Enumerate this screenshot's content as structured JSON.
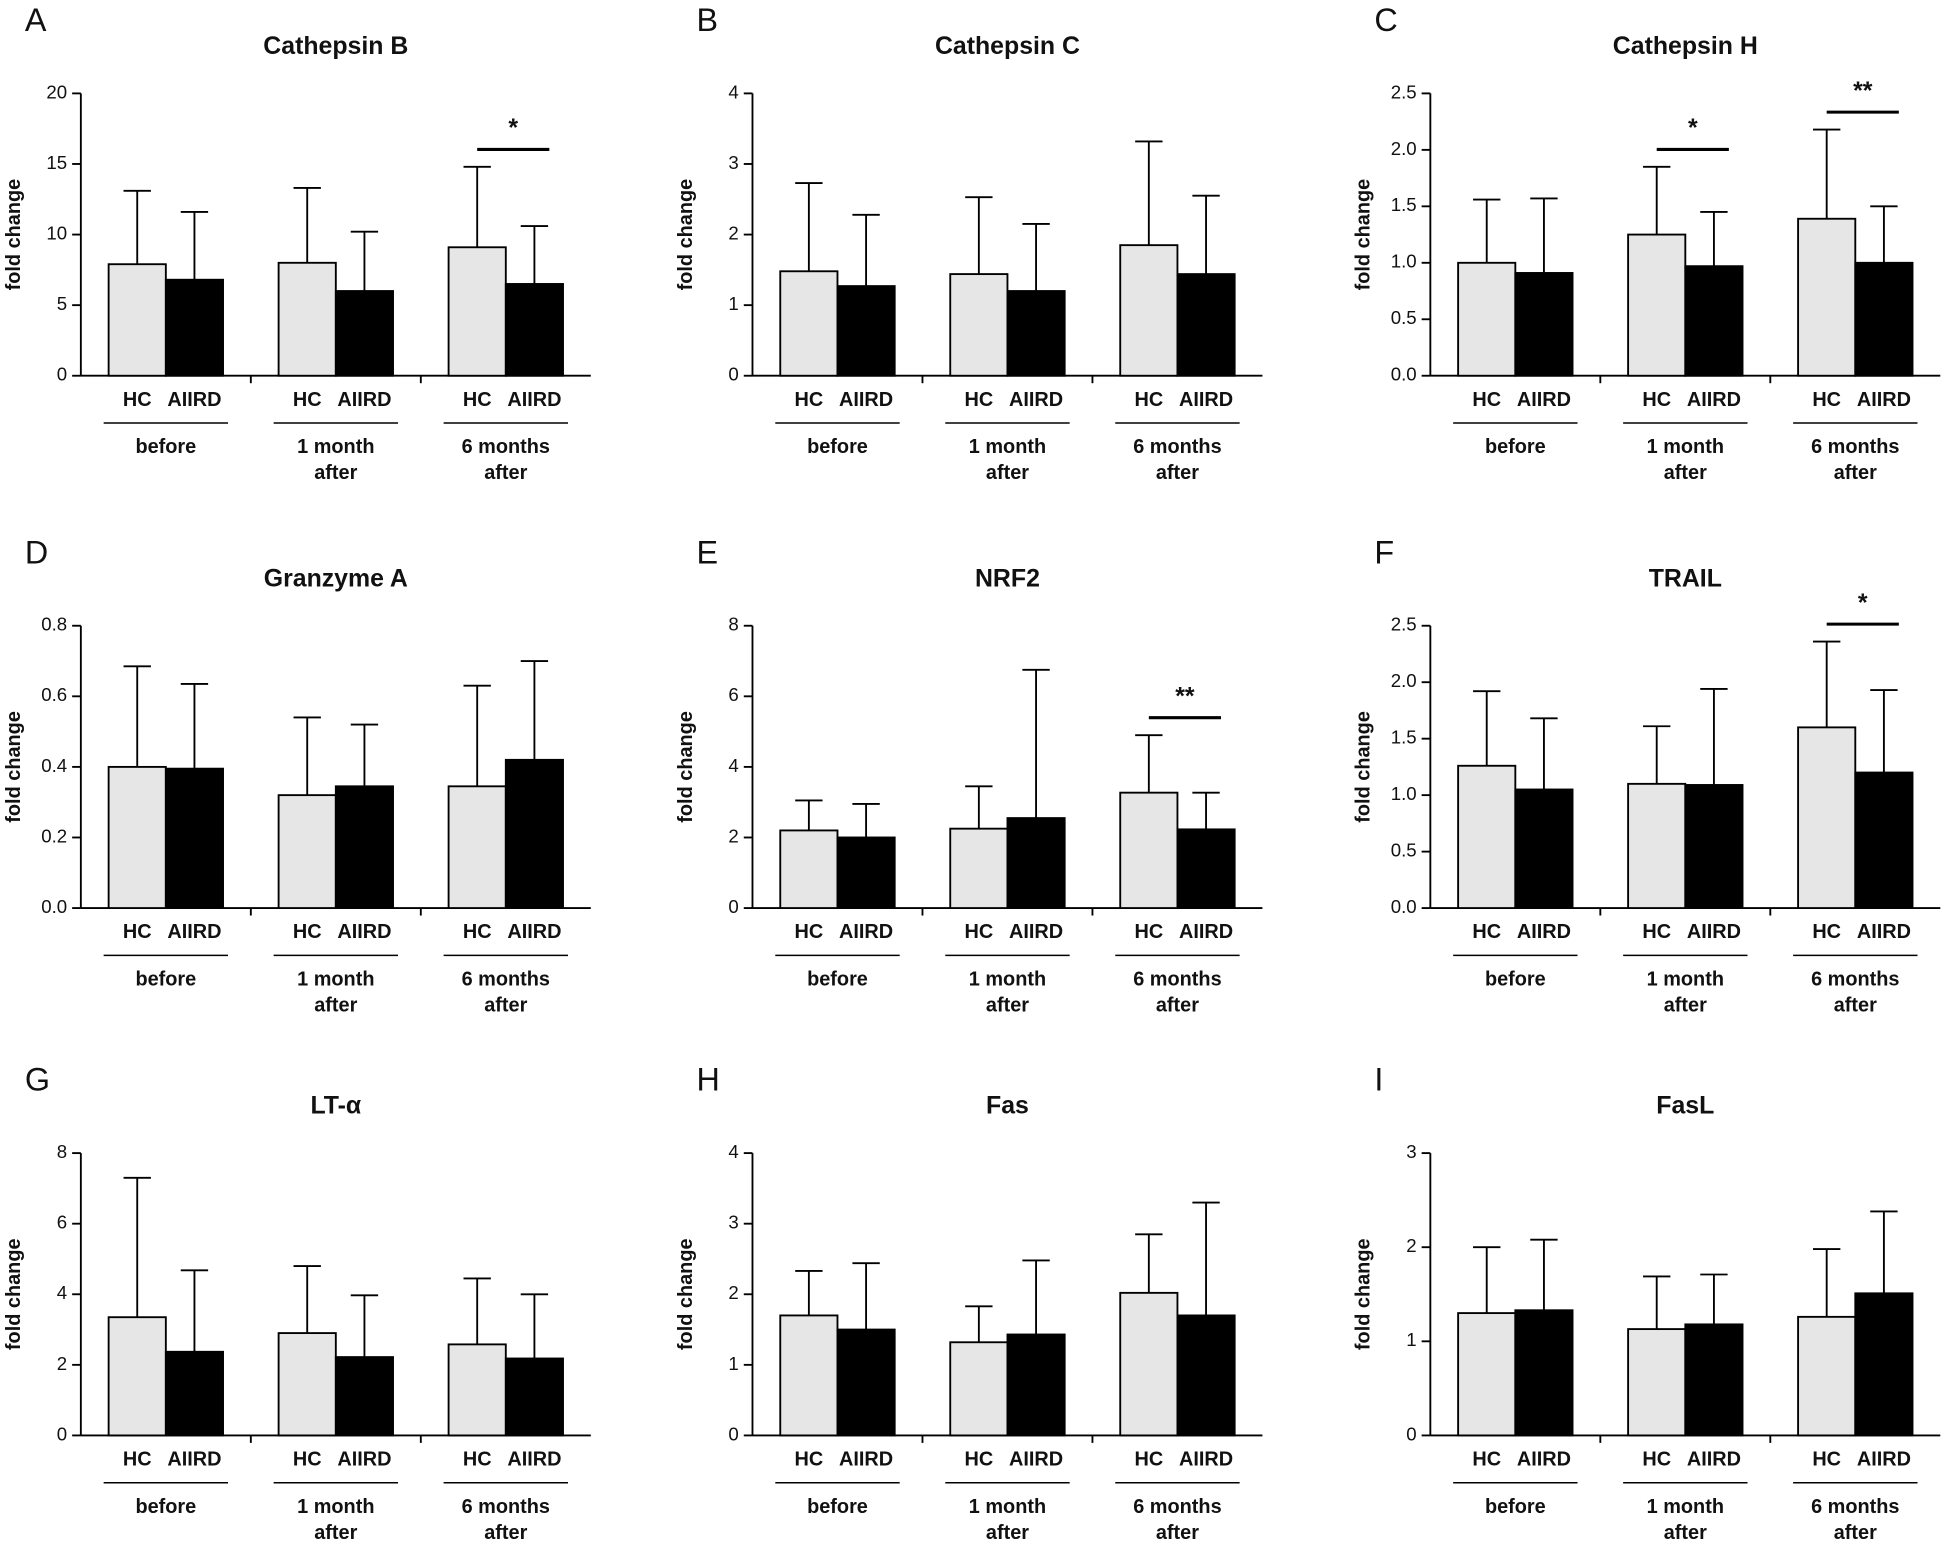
{
  "chart_data": [
    {
      "type": "bar",
      "panel": "A",
      "title": "Cathepsin B",
      "ylabel": "fold change",
      "groups": [
        [
          "before"
        ],
        [
          "1 month",
          "after"
        ],
        [
          "6 months",
          "after"
        ]
      ],
      "series": [
        {
          "name": "HC",
          "color": "#e6e6e6",
          "values": [
            7.9,
            8.0,
            9.1
          ],
          "errors": [
            5.2,
            5.3,
            5.7
          ]
        },
        {
          "name": "AIIRD",
          "color": "#000000",
          "values": [
            6.8,
            6.0,
            6.5
          ],
          "errors": [
            4.8,
            4.2,
            4.1
          ]
        }
      ],
      "ylim": [
        0,
        20
      ],
      "yticks": [
        0,
        5,
        10,
        15,
        20
      ],
      "annotations": [
        {
          "group": 2,
          "label": "*"
        }
      ]
    },
    {
      "type": "bar",
      "panel": "B",
      "title": "Cathepsin C",
      "ylabel": "fold change",
      "groups": [
        [
          "before"
        ],
        [
          "1 month",
          "after"
        ],
        [
          "6 months",
          "after"
        ]
      ],
      "series": [
        {
          "name": "HC",
          "color": "#e6e6e6",
          "values": [
            1.48,
            1.44,
            1.85
          ],
          "errors": [
            1.25,
            1.09,
            1.47
          ]
        },
        {
          "name": "AIIRD",
          "color": "#000000",
          "values": [
            1.27,
            1.2,
            1.44
          ],
          "errors": [
            1.01,
            0.95,
            1.11
          ]
        }
      ],
      "ylim": [
        0,
        4
      ],
      "yticks": [
        0,
        1,
        2,
        3,
        4
      ],
      "annotations": []
    },
    {
      "type": "bar",
      "panel": "C",
      "title": "Cathepsin H",
      "ylabel": "fold change",
      "groups": [
        [
          "before"
        ],
        [
          "1 month",
          "after"
        ],
        [
          "6 months",
          "after"
        ]
      ],
      "series": [
        {
          "name": "HC",
          "color": "#e6e6e6",
          "values": [
            1.0,
            1.25,
            1.39
          ],
          "errors": [
            0.56,
            0.6,
            0.79
          ]
        },
        {
          "name": "AIIRD",
          "color": "#000000",
          "values": [
            0.91,
            0.97,
            1.0
          ],
          "errors": [
            0.66,
            0.48,
            0.5
          ]
        }
      ],
      "ylim": [
        0,
        2.5
      ],
      "yticks": [
        {
          "value": 0,
          "label": "0.0"
        },
        0.5,
        {
          "value": 1,
          "label": "1.0"
        },
        1.5,
        {
          "value": 2,
          "label": "2.0"
        },
        2.5
      ],
      "annotations": [
        {
          "group": 1,
          "label": "*"
        },
        {
          "group": 2,
          "label": "**"
        }
      ]
    },
    {
      "type": "bar",
      "panel": "D",
      "title": "Granzyme A",
      "ylabel": "fold change",
      "groups": [
        [
          "before"
        ],
        [
          "1 month",
          "after"
        ],
        [
          "6 months",
          "after"
        ]
      ],
      "series": [
        {
          "name": "HC",
          "color": "#e6e6e6",
          "values": [
            0.4,
            0.32,
            0.345
          ],
          "errors": [
            0.285,
            0.22,
            0.285
          ]
        },
        {
          "name": "AIIRD",
          "color": "#000000",
          "values": [
            0.395,
            0.345,
            0.42
          ],
          "errors": [
            0.24,
            0.175,
            0.28
          ]
        }
      ],
      "ylim": [
        0,
        0.8
      ],
      "yticks": [
        {
          "value": 0,
          "label": "0.0"
        },
        0.2,
        0.4,
        0.6,
        0.8
      ],
      "annotations": []
    },
    {
      "type": "bar",
      "panel": "E",
      "title": "NRF2",
      "ylabel": "fold change",
      "groups": [
        [
          "before"
        ],
        [
          "1 month",
          "after"
        ],
        [
          "6 months",
          "after"
        ]
      ],
      "series": [
        {
          "name": "HC",
          "color": "#e6e6e6",
          "values": [
            2.2,
            2.25,
            3.27
          ],
          "errors": [
            0.85,
            1.2,
            1.63
          ]
        },
        {
          "name": "AIIRD",
          "color": "#000000",
          "values": [
            2.0,
            2.55,
            2.23
          ],
          "errors": [
            0.95,
            4.2,
            1.04
          ]
        }
      ],
      "ylim": [
        0,
        8
      ],
      "yticks": [
        0,
        2,
        4,
        6,
        8
      ],
      "annotations": [
        {
          "group": 2,
          "label": "**"
        }
      ]
    },
    {
      "type": "bar",
      "panel": "F",
      "title": "TRAIL",
      "ylabel": "fold change",
      "groups": [
        [
          "before"
        ],
        [
          "1 month",
          "after"
        ],
        [
          "6 months",
          "after"
        ]
      ],
      "series": [
        {
          "name": "HC",
          "color": "#e6e6e6",
          "values": [
            1.26,
            1.1,
            1.6
          ],
          "errors": [
            0.66,
            0.51,
            0.76
          ]
        },
        {
          "name": "AIIRD",
          "color": "#000000",
          "values": [
            1.05,
            1.09,
            1.2
          ],
          "errors": [
            0.63,
            0.85,
            0.73
          ]
        }
      ],
      "ylim": [
        0,
        2.5
      ],
      "yticks": [
        {
          "value": 0,
          "label": "0.0"
        },
        0.5,
        {
          "value": 1,
          "label": "1.0"
        },
        1.5,
        {
          "value": 2,
          "label": "2.0"
        },
        2.5
      ],
      "annotations": [
        {
          "group": 2,
          "label": "*"
        }
      ]
    },
    {
      "type": "bar",
      "panel": "G",
      "title": "LT-α",
      "ylabel": "fold change",
      "groups": [
        [
          "before"
        ],
        [
          "1 month",
          "after"
        ],
        [
          "6 months",
          "after"
        ]
      ],
      "series": [
        {
          "name": "HC",
          "color": "#e6e6e6",
          "values": [
            3.35,
            2.9,
            2.58
          ],
          "errors": [
            3.95,
            1.9,
            1.87
          ]
        },
        {
          "name": "AIIRD",
          "color": "#000000",
          "values": [
            2.37,
            2.22,
            2.18
          ],
          "errors": [
            2.31,
            1.75,
            1.82
          ]
        }
      ],
      "ylim": [
        0,
        8
      ],
      "yticks": [
        0,
        2,
        4,
        6,
        8
      ],
      "annotations": []
    },
    {
      "type": "bar",
      "panel": "H",
      "title": "Fas",
      "ylabel": "fold change",
      "groups": [
        [
          "before"
        ],
        [
          "1 month",
          "after"
        ],
        [
          "6 months",
          "after"
        ]
      ],
      "series": [
        {
          "name": "HC",
          "color": "#e6e6e6",
          "values": [
            1.7,
            1.32,
            2.02
          ],
          "errors": [
            0.63,
            0.51,
            0.83
          ]
        },
        {
          "name": "AIIRD",
          "color": "#000000",
          "values": [
            1.5,
            1.43,
            1.7
          ],
          "errors": [
            0.94,
            1.05,
            1.6
          ]
        }
      ],
      "ylim": [
        0,
        4
      ],
      "yticks": [
        0,
        1,
        2,
        3,
        4
      ],
      "annotations": []
    },
    {
      "type": "bar",
      "panel": "I",
      "title": "FasL",
      "ylabel": "fold change",
      "groups": [
        [
          "before"
        ],
        [
          "1 month",
          "after"
        ],
        [
          "6 months",
          "after"
        ]
      ],
      "series": [
        {
          "name": "HC",
          "color": "#e6e6e6",
          "values": [
            1.3,
            1.13,
            1.26
          ],
          "errors": [
            0.7,
            0.56,
            0.72
          ]
        },
        {
          "name": "AIIRD",
          "color": "#000000",
          "values": [
            1.33,
            1.18,
            1.51
          ],
          "errors": [
            0.75,
            0.53,
            0.87
          ]
        }
      ],
      "ylim": [
        0,
        3
      ],
      "yticks": [
        0,
        1,
        2,
        3
      ],
      "annotations": []
    }
  ]
}
